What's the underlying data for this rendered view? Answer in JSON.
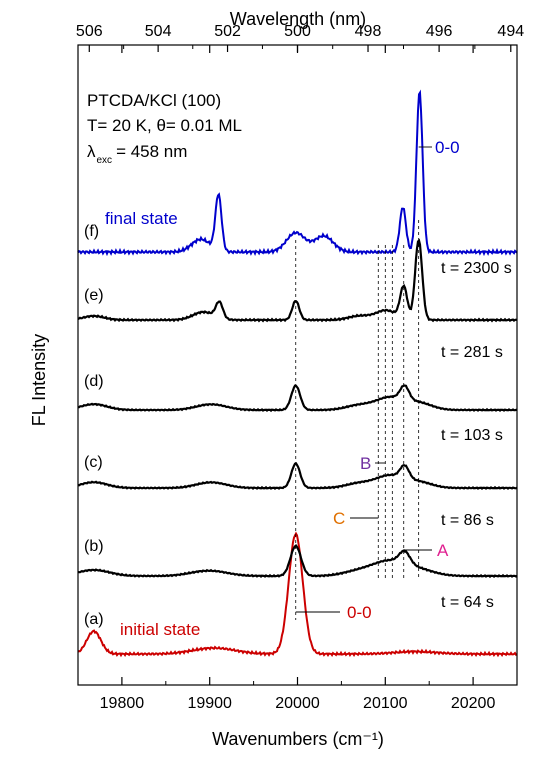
{
  "chart_data": {
    "type": "line",
    "xlabel": "Wavenumbers (cm⁻¹)",
    "ylabel": "FL Intensity",
    "top_xlabel": "Wavelength (nm)",
    "xlim": [
      19750,
      20250
    ],
    "bottom_ticks": [
      19800,
      19900,
      20000,
      20100,
      20200
    ],
    "top_ticks": [
      506,
      504,
      502,
      500,
      498,
      496,
      494
    ],
    "info_lines": [
      "PTCDA/KCl (100)",
      "T= 20 K, θ= 0.01 ML",
      "λ",
      "exc",
      "= 458 nm"
    ],
    "series": [
      {
        "label": "(a)",
        "name": "initial state",
        "time": "",
        "color": "#cc0000",
        "peaks": [
          {
            "x": 19768,
            "h": 0.19
          },
          {
            "x": 19905,
            "h": 0.05
          },
          {
            "x": 19998,
            "h": 1.0
          },
          {
            "x": 20134,
            "h": 0.02
          }
        ],
        "annotation": "0-0"
      },
      {
        "label": "(b)",
        "name": "",
        "time": "t = 64 s",
        "color": "#000000",
        "peaks": [
          {
            "x": 19768,
            "h": 0.1
          },
          {
            "x": 19890,
            "h": 0.05
          },
          {
            "x": 19908,
            "h": 0.05
          },
          {
            "x": 19998,
            "h": 0.5
          },
          {
            "x": 20070,
            "h": 0.08
          },
          {
            "x": 20100,
            "h": 0.12
          },
          {
            "x": 20109,
            "h": 0.12
          },
          {
            "x": 20122,
            "h": 0.2
          },
          {
            "x": 20138,
            "h": 0.1
          }
        ]
      },
      {
        "label": "(c)",
        "name": "",
        "time": "t =  86 s",
        "color": "#000000",
        "peaks": [
          {
            "x": 19768,
            "h": 0.1
          },
          {
            "x": 19895,
            "h": 0.06
          },
          {
            "x": 19910,
            "h": 0.05
          },
          {
            "x": 19998,
            "h": 0.42
          },
          {
            "x": 20070,
            "h": 0.08
          },
          {
            "x": 20100,
            "h": 0.1
          },
          {
            "x": 20109,
            "h": 0.12
          },
          {
            "x": 20122,
            "h": 0.22
          },
          {
            "x": 20138,
            "h": 0.1
          }
        ]
      },
      {
        "label": "(d)",
        "name": "",
        "time": "t = 103 s",
        "color": "#000000",
        "peaks": [
          {
            "x": 19768,
            "h": 0.1
          },
          {
            "x": 19895,
            "h": 0.06
          },
          {
            "x": 19910,
            "h": 0.05
          },
          {
            "x": 19998,
            "h": 0.42
          },
          {
            "x": 20070,
            "h": 0.08
          },
          {
            "x": 20100,
            "h": 0.1
          },
          {
            "x": 20109,
            "h": 0.12
          },
          {
            "x": 20122,
            "h": 0.24
          },
          {
            "x": 20138,
            "h": 0.12
          }
        ]
      },
      {
        "label": "(e)",
        "name": "",
        "time": "t = 2300 s",
        "color": "#000000",
        "time2": "t = 281 s",
        "peaks": [
          {
            "x": 19768,
            "h": 0.05
          },
          {
            "x": 19893,
            "h": 0.1
          },
          {
            "x": 19911,
            "h": 0.2
          },
          {
            "x": 19998,
            "h": 0.24
          },
          {
            "x": 20070,
            "h": 0.05
          },
          {
            "x": 20101,
            "h": 0.12
          },
          {
            "x": 20121,
            "h": 0.4
          },
          {
            "x": 20138,
            "h": 1.0
          }
        ]
      },
      {
        "label": "(f)",
        "name": "final state",
        "time": "",
        "color": "#0000cc",
        "peaks": [
          {
            "x": 19890,
            "h": 0.08
          },
          {
            "x": 19910,
            "h": 0.35
          },
          {
            "x": 19998,
            "h": 0.12
          },
          {
            "x": 20030,
            "h": 0.1
          },
          {
            "x": 20120,
            "h": 0.28
          },
          {
            "x": 20139,
            "h": 1.0
          }
        ],
        "annotation": "0-0"
      }
    ],
    "markers": [
      {
        "label": "A",
        "color": "#e02090"
      },
      {
        "label": "B",
        "color": "#7030a0"
      },
      {
        "label": "C",
        "color": "#e07000"
      }
    ],
    "dashed_lines_x": [
      19998,
      20092,
      20100,
      20108,
      20121,
      20138
    ]
  }
}
